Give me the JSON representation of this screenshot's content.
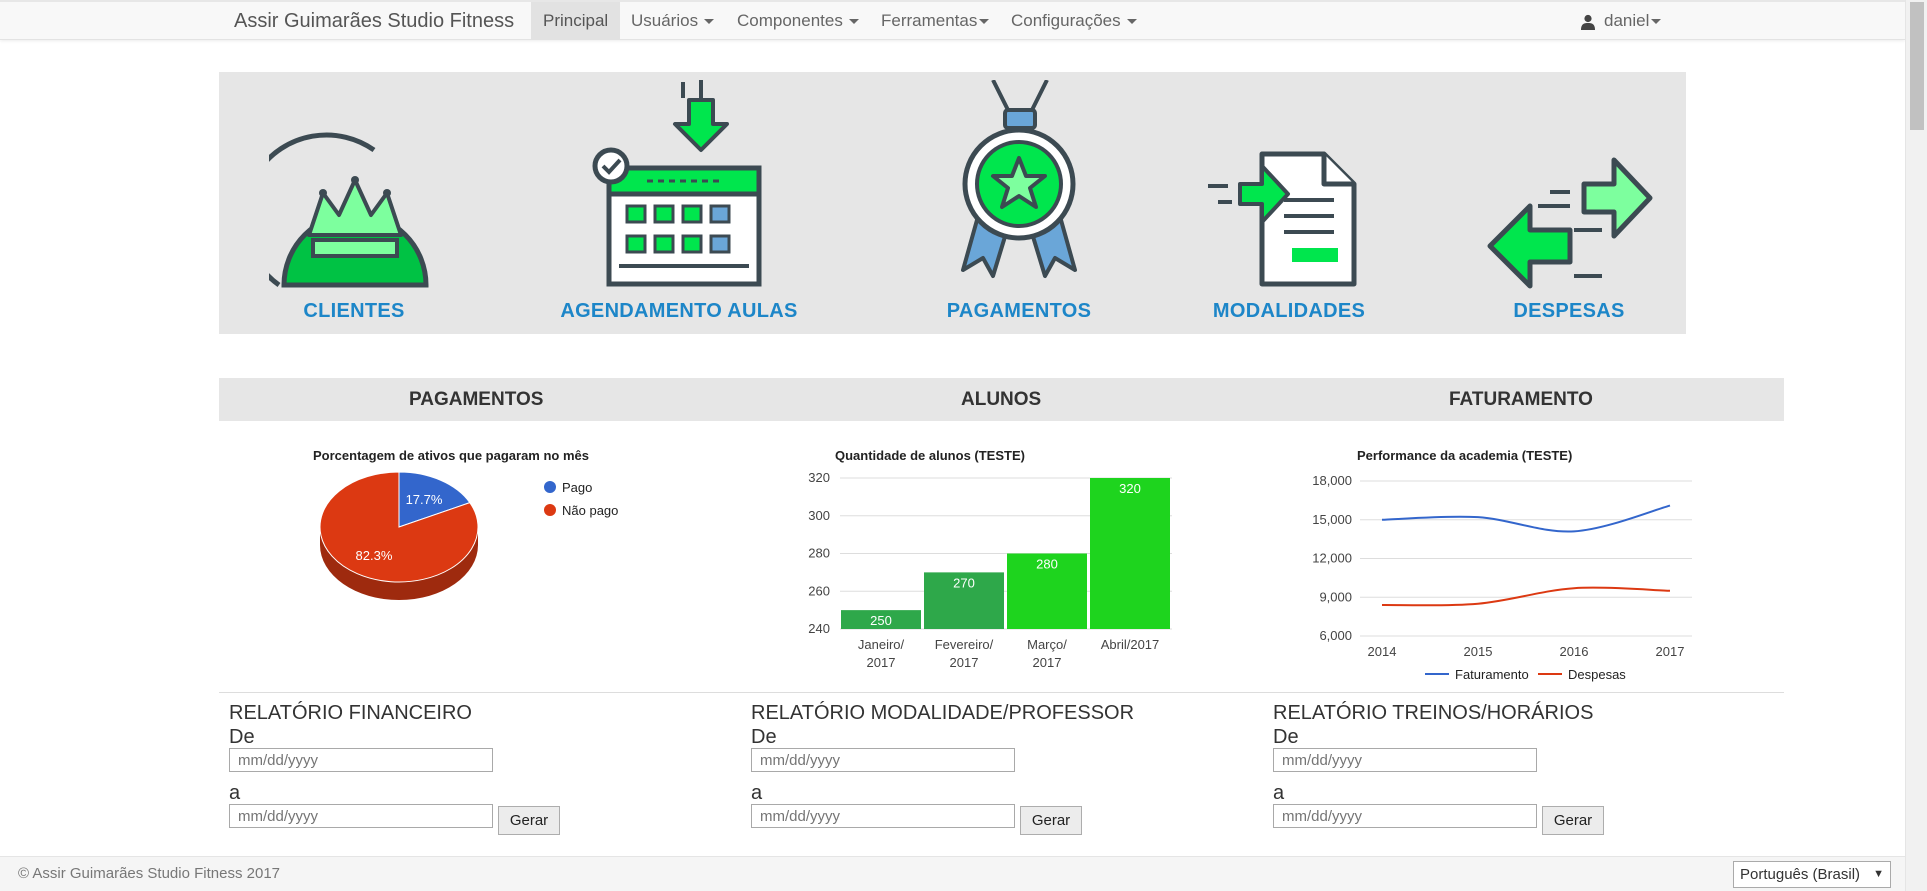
{
  "navbar": {
    "brand": "Assir Guimarães Studio Fitness",
    "items": [
      {
        "label": "Principal",
        "active": true
      },
      {
        "label": "Usuários",
        "dropdown": true
      },
      {
        "label": "Componentes",
        "dropdown": true
      },
      {
        "label": "Ferramentas",
        "dropdown": true
      },
      {
        "label": "Configurações",
        "dropdown": true
      }
    ],
    "user": {
      "name": "daniel",
      "icon": "user-icon"
    }
  },
  "shortcuts": [
    {
      "label": "CLIENTES",
      "icon": "crown-icon"
    },
    {
      "label": "AGENDAMENTO AULAS",
      "icon": "calendar-icon"
    },
    {
      "label": "PAGAMENTOS",
      "icon": "medal-icon"
    },
    {
      "label": "MODALIDADES",
      "icon": "document-icon"
    },
    {
      "label": "DESPESAS",
      "icon": "exchange-arrows-icon"
    }
  ],
  "sections": [
    "PAGAMENTOS",
    "ALUNOS",
    "FATURAMENTO"
  ],
  "colors": {
    "accent_blue": "#1d86c8",
    "icon_green": "#00e64d",
    "icon_dark": "#3c4a52",
    "pie_pago": "#3366cc",
    "pie_nao_pago": "#dc3912",
    "bar_dark_green": "#2ea84a",
    "bar_bright_green": "#1ed41e",
    "line_faturamento": "#3366cc",
    "line_despesas": "#dc3912"
  },
  "chart_data": [
    {
      "type": "pie",
      "title": "Porcentagem de ativos que pagaram no mês",
      "slices": [
        {
          "label": "Pago",
          "value": 17.7,
          "display": "17.7%"
        },
        {
          "label": "Não pago",
          "value": 82.3,
          "display": "82.3%"
        }
      ],
      "legend": "right"
    },
    {
      "type": "bar",
      "title": "Quantidade de alunos (TESTE)",
      "categories": [
        [
          "Janeiro/",
          "2017"
        ],
        [
          "Fevereiro/",
          "2017"
        ],
        [
          "Março/",
          "2017"
        ],
        [
          "Abril/2017"
        ]
      ],
      "values": [
        250,
        270,
        280,
        320
      ],
      "ylim": [
        240,
        320
      ],
      "yticks": [
        240,
        260,
        280,
        300,
        320
      ],
      "grid": true
    },
    {
      "type": "line",
      "title": "Performance da academia (TESTE)",
      "x": [
        "2014",
        "2015",
        "2016",
        "2017"
      ],
      "series": [
        {
          "name": "Faturamento",
          "values": [
            15000,
            15200,
            14100,
            16100
          ]
        },
        {
          "name": "Despesas",
          "values": [
            8400,
            8500,
            9700,
            9500
          ]
        }
      ],
      "ylim": [
        6000,
        18000
      ],
      "yticks": [
        "6,000",
        "9,000",
        "12,000",
        "15,000",
        "18,000"
      ],
      "grid": true,
      "legend": "bottom"
    }
  ],
  "reports": [
    {
      "title": "RELATÓRIO FINANCEIRO",
      "from_label": "De",
      "to_label": "a",
      "placeholder": "mm/dd/yyyy",
      "button": "Gerar"
    },
    {
      "title": "RELATÓRIO MODALIDADE/PROFESSOR",
      "from_label": "De",
      "to_label": "a",
      "placeholder": "mm/dd/yyyy",
      "button": "Gerar"
    },
    {
      "title": "RELATÓRIO TREINOS/HORÁRIOS",
      "from_label": "De",
      "to_label": "a",
      "placeholder": "mm/dd/yyyy",
      "button": "Gerar"
    }
  ],
  "footer": {
    "copyright": "© Assir Guimarães Studio Fitness 2017",
    "language": "Português (Brasil)"
  }
}
